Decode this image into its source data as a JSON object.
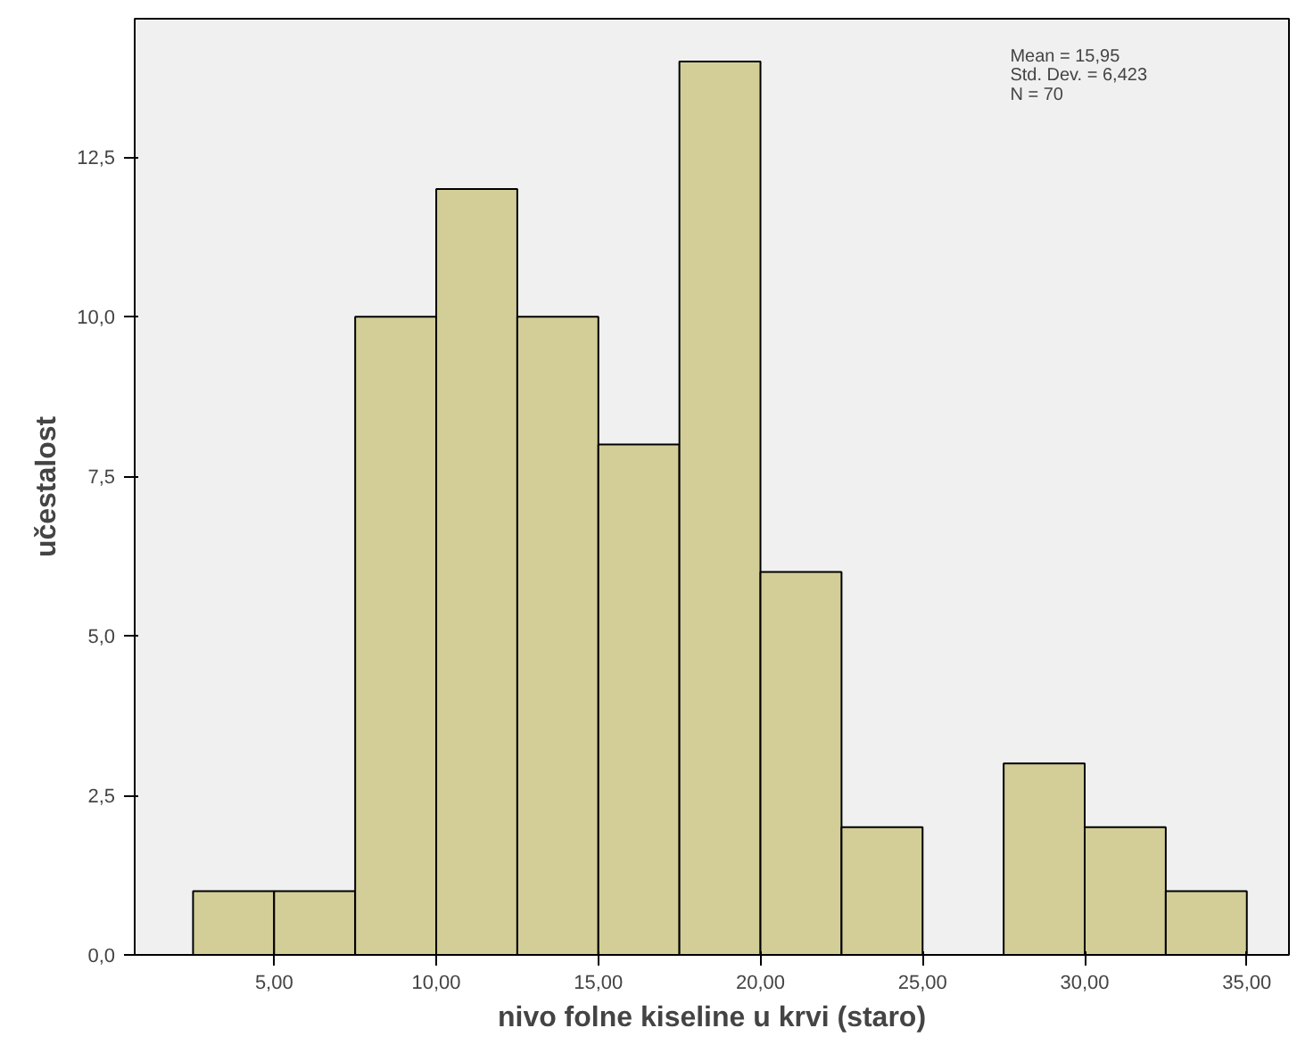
{
  "chart_data": {
    "type": "histogram",
    "xlabel": "nivo folne kiseline u krvi (staro)",
    "ylabel": "učestalost",
    "bins": [
      2.5,
      5,
      7.5,
      10,
      12.5,
      15,
      17.5,
      20,
      22.5,
      25,
      27.5,
      30,
      32.5,
      35
    ],
    "values": [
      1,
      1,
      10,
      12,
      10,
      8,
      14,
      6,
      2,
      0,
      3,
      2,
      1
    ],
    "color": "#d3ce97",
    "xlim": [
      0.7,
      36.3
    ],
    "ylim": [
      0,
      14.67
    ],
    "xticks": [
      {
        "value": 5,
        "label": "5,00"
      },
      {
        "value": 10,
        "label": "10,00"
      },
      {
        "value": 15,
        "label": "15,00"
      },
      {
        "value": 20,
        "label": "20,00"
      },
      {
        "value": 25,
        "label": "25,00"
      },
      {
        "value": 30,
        "label": "30,00"
      },
      {
        "value": 35,
        "label": "35,00"
      }
    ],
    "yticks": [
      {
        "value": 0,
        "label": "0,0"
      },
      {
        "value": 2.5,
        "label": "2,5"
      },
      {
        "value": 5,
        "label": "5,0"
      },
      {
        "value": 7.5,
        "label": "7,5"
      },
      {
        "value": 10,
        "label": "10,0"
      },
      {
        "value": 12.5,
        "label": "12,5"
      }
    ],
    "annotations": [
      "Mean = 15,95",
      "Std. Dev. = 6,423",
      "N = 70"
    ],
    "grid": false
  }
}
